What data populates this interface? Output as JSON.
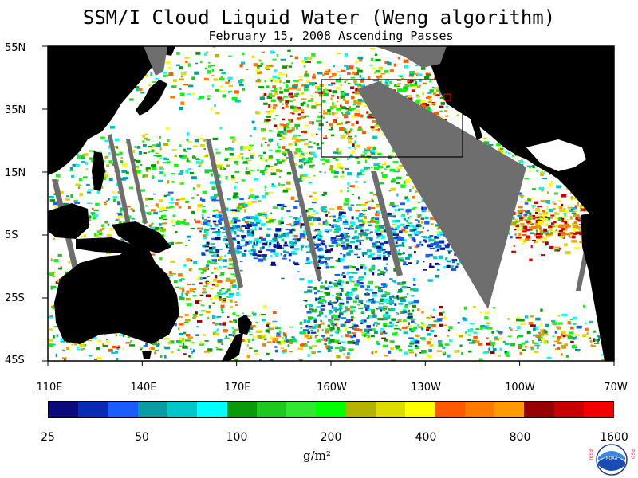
{
  "title": "SSM/I Cloud Liquid Water (Weng algorithm)",
  "subtitle": "February 15, 2008  Ascending Passes",
  "lat_labels": [
    "55N",
    "35N",
    "15N",
    "5S",
    "25S",
    "45S"
  ],
  "lon_labels": [
    "110E",
    "140E",
    "170E",
    "160W",
    "130W",
    "100W",
    "70W"
  ],
  "colorbar": {
    "colors": [
      "#0a0a7a",
      "#0a2ab4",
      "#1a5cff",
      "#0a9ca0",
      "#00c8c8",
      "#00ffff",
      "#0a9a0a",
      "#1ec81e",
      "#32e632",
      "#00ff00",
      "#b4b400",
      "#dcdc00",
      "#ffff00",
      "#ff5a00",
      "#ff7a00",
      "#ff9a00",
      "#960000",
      "#c80000",
      "#f00000"
    ],
    "tick_labels": [
      "25",
      "50",
      "100",
      "200",
      "400",
      "800",
      "1600"
    ]
  },
  "unit_label": "g/m²",
  "logo": {
    "left_text": "ESRL",
    "right_text": "PSD",
    "center_text": "NOAA"
  }
}
